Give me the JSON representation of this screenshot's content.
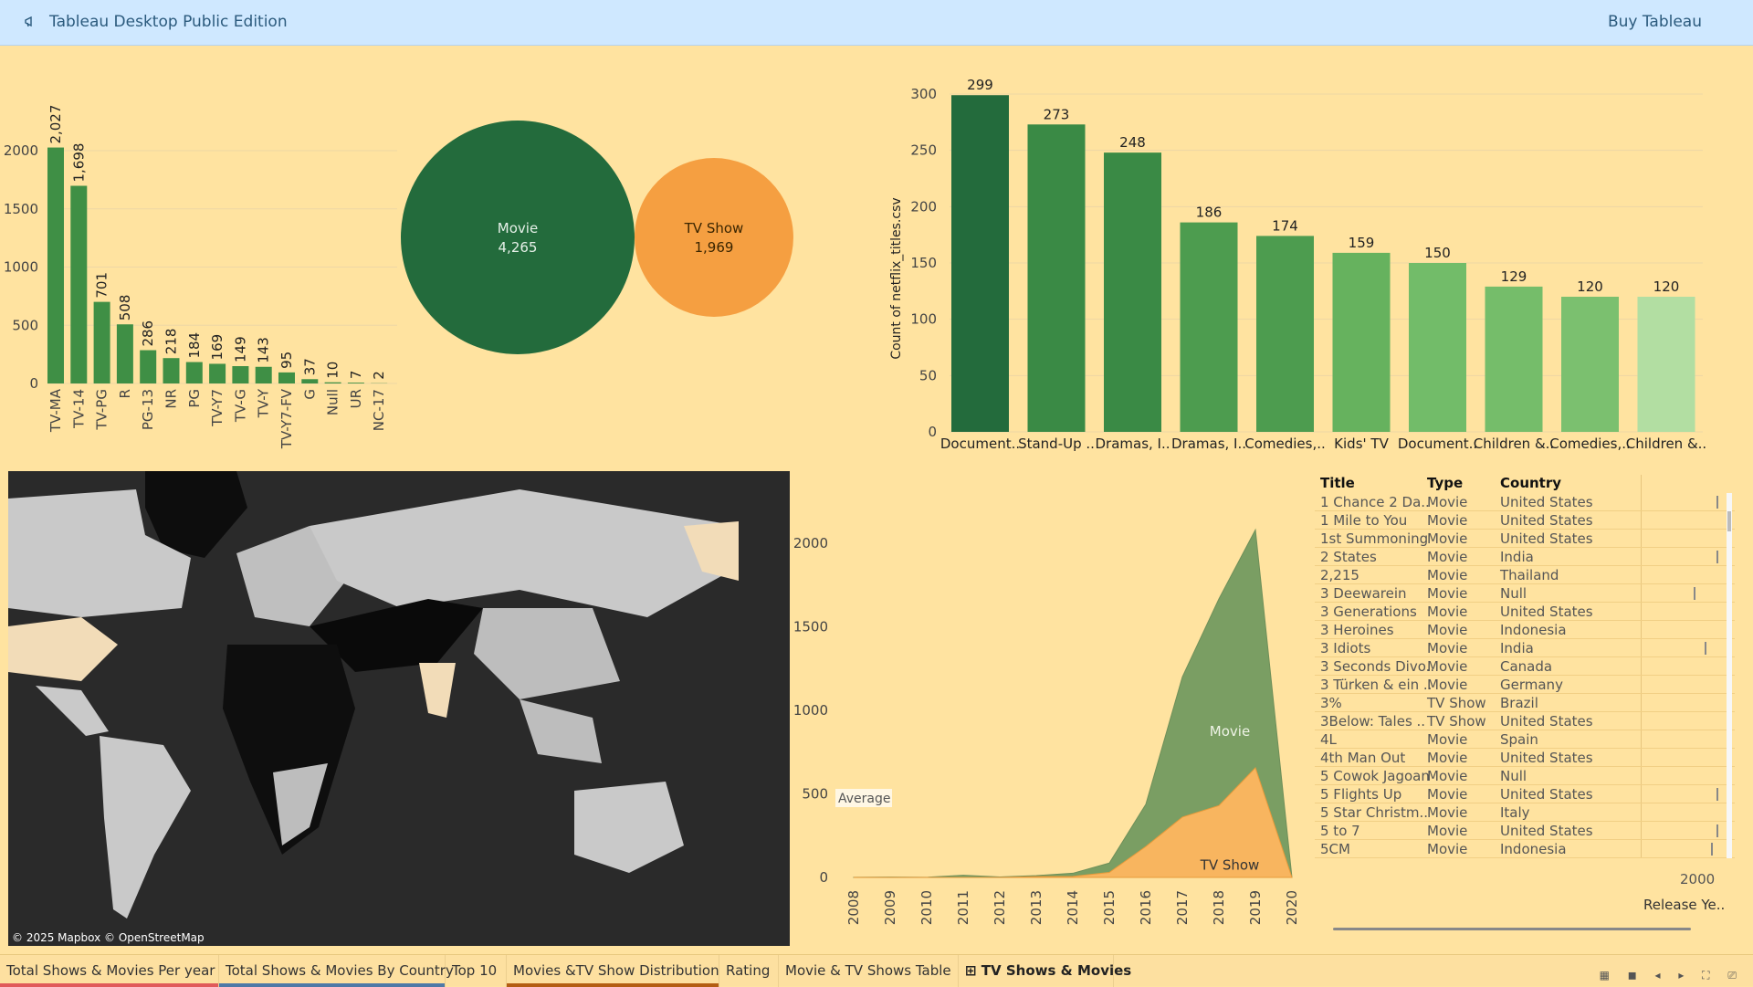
{
  "app": {
    "title": "Tableau Desktop Public Edition",
    "buy_label": "Buy Tableau",
    "icon": "megaphone-icon"
  },
  "rating_chart": {
    "chart_data": {
      "type": "bar",
      "categories": [
        "TV-MA",
        "TV-14",
        "TV-PG",
        "R",
        "PG-13",
        "NR",
        "PG",
        "TV-Y7",
        "TV-G",
        "TV-Y",
        "TV-Y7-FV",
        "G",
        "Null",
        "UR",
        "NC-17"
      ],
      "values": [
        2027,
        1698,
        701,
        508,
        286,
        218,
        184,
        169,
        149,
        143,
        95,
        37,
        10,
        7,
        2
      ],
      "value_labels": [
        "2,027",
        "1,698",
        "701",
        "508",
        "286",
        "218",
        "184",
        "169",
        "149",
        "143",
        "95",
        "37",
        "10",
        "7",
        "2"
      ],
      "yticks": [
        "2000",
        "1500",
        "1000",
        "500",
        "0"
      ],
      "ylim": [
        0,
        2300
      ],
      "color": "#3f8f45"
    }
  },
  "distribution_chart": {
    "chart_data": {
      "type": "bubble",
      "items": [
        {
          "name": "Movie",
          "value": 4265,
          "label": "4,265",
          "color": "#236b3c"
        },
        {
          "name": "TV Show",
          "value": 1969,
          "label": "1,969",
          "color": "#f59f41"
        }
      ]
    }
  },
  "top10_chart": {
    "chart_data": {
      "type": "bar",
      "categories": [
        "Document..",
        "Stand-Up ..",
        "Dramas, I..",
        "Dramas, I..",
        "Comedies,..",
        "Kids' TV",
        "Document..",
        "Children &..",
        "Comedies,..",
        "Children &.."
      ],
      "values": [
        299,
        273,
        248,
        186,
        174,
        159,
        150,
        129,
        120,
        120
      ],
      "colors": [
        "#236b3c",
        "#3a8a45",
        "#3a8a45",
        "#4d9c4f",
        "#4d9c4f",
        "#66b25e",
        "#72bc69",
        "#75bd6a",
        "#7bc06f",
        "#b2dea2"
      ],
      "ylabel": "Count of netflix_titles.csv",
      "yticks": [
        "300",
        "250",
        "200",
        "150",
        "100",
        "50",
        "0"
      ],
      "ylim": [
        0,
        300
      ]
    }
  },
  "map": {
    "attribution": "© 2025 Mapbox © OpenStreetMap"
  },
  "area_chart": {
    "chart_data": {
      "type": "area",
      "x": [
        "2008",
        "2009",
        "2010",
        "2011",
        "2012",
        "2013",
        "2014",
        "2015",
        "2016",
        "2017",
        "2018",
        "2019",
        "2020"
      ],
      "series": [
        {
          "name": "Movie",
          "values": [
            1,
            2,
            1,
            13,
            3,
            6,
            19,
            56,
            253,
            839,
            1237,
            1424,
            0
          ],
          "color": "#7a9e63"
        },
        {
          "name": "TV Show",
          "values": [
            0,
            0,
            0,
            0,
            0,
            5,
            6,
            30,
            185,
            361,
            430,
            656,
            0
          ],
          "color": "#f8b55f"
        }
      ],
      "yticks": [
        "2000",
        "1500",
        "1000",
        "500",
        "0"
      ],
      "ylim": [
        0,
        2300
      ],
      "reference_label": "Average"
    }
  },
  "table": {
    "headers": [
      "Title",
      "Type",
      "Country"
    ],
    "axis_label": "Release Ye..",
    "axis_tick": "2000",
    "rows": [
      {
        "title": "1 Chance 2 Da..",
        "type": "Movie",
        "country": "United States",
        "tick": 0.93
      },
      {
        "title": "1 Mile to You",
        "type": "Movie",
        "country": "United States",
        "tick": null
      },
      {
        "title": "1st Summoning",
        "type": "Movie",
        "country": "United States",
        "tick": null
      },
      {
        "title": "2 States",
        "type": "Movie",
        "country": "India",
        "tick": 0.93
      },
      {
        "title": "2,215",
        "type": "Movie",
        "country": "Thailand",
        "tick": null
      },
      {
        "title": "3 Deewarein",
        "type": "Movie",
        "country": "Null",
        "tick": 0.65
      },
      {
        "title": "3 Generations",
        "type": "Movie",
        "country": "United States",
        "tick": null
      },
      {
        "title": "3 Heroines",
        "type": "Movie",
        "country": "Indonesia",
        "tick": null
      },
      {
        "title": "3 Idiots",
        "type": "Movie",
        "country": "India",
        "tick": 0.78
      },
      {
        "title": "3 Seconds Divo..",
        "type": "Movie",
        "country": "Canada",
        "tick": null
      },
      {
        "title": "3 Türken & ein ..",
        "type": "Movie",
        "country": "Germany",
        "tick": null
      },
      {
        "title": "3%",
        "type": "TV Show",
        "country": "Brazil",
        "tick": null
      },
      {
        "title": "3Below: Tales ..",
        "type": "TV Show",
        "country": "United States",
        "tick": null
      },
      {
        "title": "4L",
        "type": "Movie",
        "country": "Spain",
        "tick": null
      },
      {
        "title": "4th Man Out",
        "type": "Movie",
        "country": "United States",
        "tick": null
      },
      {
        "title": "5 Cowok Jagoan",
        "type": "Movie",
        "country": "Null",
        "tick": null
      },
      {
        "title": "5 Flights Up",
        "type": "Movie",
        "country": "United States",
        "tick": 0.93
      },
      {
        "title": "5 Star Christm..",
        "type": "Movie",
        "country": "Italy",
        "tick": null
      },
      {
        "title": "5 to 7",
        "type": "Movie",
        "country": "United States",
        "tick": 0.93
      },
      {
        "title": "5CM",
        "type": "Movie",
        "country": "Indonesia",
        "tick": 0.86
      }
    ]
  },
  "tabs": [
    {
      "label": "Total Shows & Movies Per year",
      "color": "#e05a5a",
      "active": false
    },
    {
      "label": "Total Shows & Movies By Country",
      "color": "#4e79a7",
      "active": false
    },
    {
      "label": "Top 10",
      "color": "",
      "active": false
    },
    {
      "label": "Movies &TV Show Distribution",
      "color": "#b35d12",
      "active": false
    },
    {
      "label": "Rating",
      "color": "",
      "active": false
    },
    {
      "label": "Movie & TV  Shows Table",
      "color": "",
      "active": false
    },
    {
      "label": "TV Shows & Movies",
      "color": "",
      "active": true,
      "icon": "dashboard-icon"
    }
  ]
}
